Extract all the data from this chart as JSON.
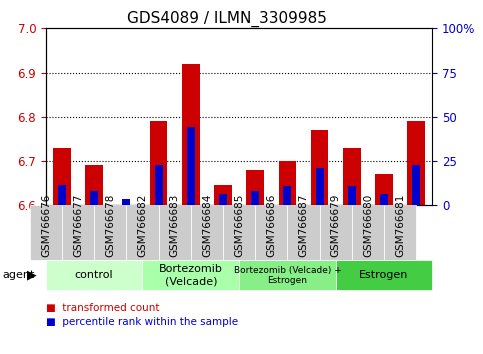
{
  "title": "GDS4089 / ILMN_3309985",
  "samples": [
    "GSM766676",
    "GSM766677",
    "GSM766678",
    "GSM766682",
    "GSM766683",
    "GSM766684",
    "GSM766685",
    "GSM766686",
    "GSM766687",
    "GSM766679",
    "GSM766680",
    "GSM766681"
  ],
  "red_values": [
    6.73,
    6.69,
    6.6,
    6.79,
    6.92,
    6.645,
    6.68,
    6.7,
    6.77,
    6.73,
    6.67,
    6.79
  ],
  "blue_values": [
    6.645,
    6.633,
    6.614,
    6.69,
    6.778,
    6.625,
    6.633,
    6.643,
    6.685,
    6.644,
    6.625,
    6.69
  ],
  "base": 6.6,
  "ylim_left": [
    6.6,
    7.0
  ],
  "ylim_right": [
    0,
    100
  ],
  "yticks_left": [
    6.6,
    6.7,
    6.8,
    6.9,
    7.0
  ],
  "yticks_right": [
    0,
    25,
    50,
    75,
    100
  ],
  "ytick_labels_right": [
    "0",
    "25",
    "50",
    "75",
    "100%"
  ],
  "grid_values": [
    6.7,
    6.8,
    6.9
  ],
  "groups": [
    {
      "label": "control",
      "start": 0,
      "end": 3,
      "color": "#ccffcc"
    },
    {
      "label": "Bortezomib\n(Velcade)",
      "start": 3,
      "end": 6,
      "color": "#aaffaa"
    },
    {
      "label": "Bortezomib (Velcade) +\nEstrogen",
      "start": 6,
      "end": 9,
      "color": "#88ee88"
    },
    {
      "label": "Estrogen",
      "start": 9,
      "end": 12,
      "color": "#44cc44"
    }
  ],
  "bar_width": 0.55,
  "blue_bar_width": 0.25,
  "red_color": "#cc0000",
  "blue_color": "#0000cc",
  "tick_color_left": "#cc0000",
  "tick_color_right": "#0000cc",
  "legend_items": [
    {
      "color": "#cc0000",
      "label": "transformed count"
    },
    {
      "color": "#0000cc",
      "label": "percentile rank within the sample"
    }
  ],
  "sample_box_color": "#cccccc",
  "title_fontsize": 11,
  "tick_fontsize": 7.5,
  "group_fontsize": 8
}
